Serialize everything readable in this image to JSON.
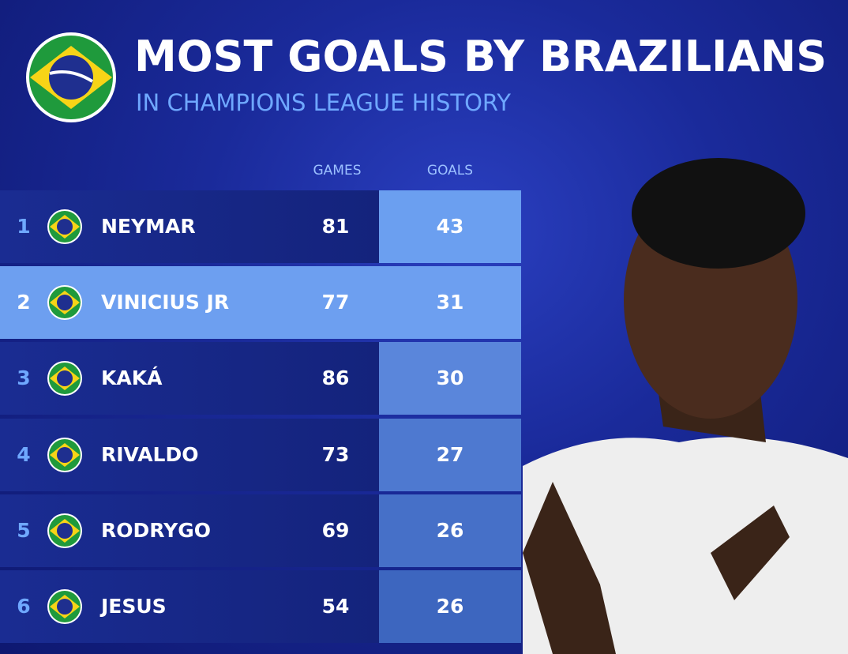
{
  "header": {
    "title": "MOST GOALS BY BRAZILIANS",
    "subtitle": "IN CHAMPIONS LEAGUE HISTORY"
  },
  "table": {
    "columns": [
      "GAMES",
      "GOALS"
    ],
    "rows": [
      {
        "rank": 1,
        "name": "NEYMAR",
        "games": 81,
        "goals": 43
      },
      {
        "rank": 2,
        "name": "VINICIUS JR",
        "games": 77,
        "goals": 31
      },
      {
        "rank": 3,
        "name": "KAKÁ",
        "games": 86,
        "goals": 30
      },
      {
        "rank": 4,
        "name": "RIVALDO",
        "games": 73,
        "goals": 27
      },
      {
        "rank": 5,
        "name": "RODRYGO",
        "games": 69,
        "goals": 26
      },
      {
        "rank": 6,
        "name": "JESUS",
        "games": 54,
        "goals": 26
      }
    ]
  }
}
